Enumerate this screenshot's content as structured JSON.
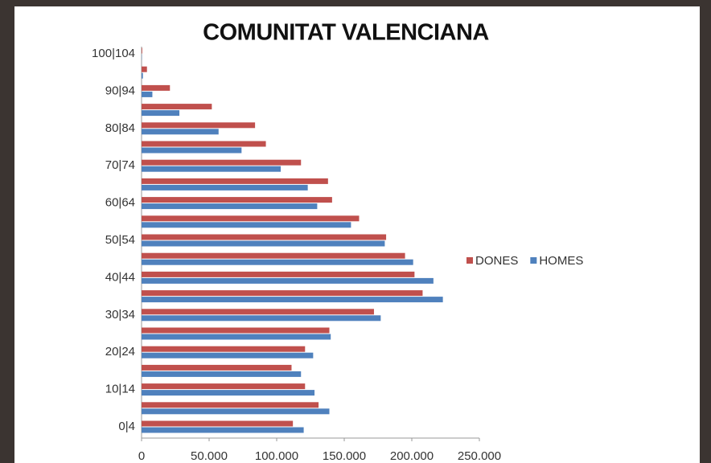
{
  "chart_data": {
    "type": "bar",
    "orientation": "horizontal",
    "title": "COMUNITAT VALENCIANA",
    "categories": [
      "0|4",
      null,
      "10|14",
      null,
      "20|24",
      null,
      "30|34",
      null,
      "40|44",
      null,
      "50|54",
      null,
      "60|64",
      null,
      "70|74",
      null,
      "80|84",
      null,
      "90|94",
      null,
      "100|104"
    ],
    "series": [
      {
        "name": "DONES",
        "color": "#c0504d",
        "values": [
          112000,
          131000,
          121000,
          111000,
          121000,
          139000,
          172000,
          208000,
          202000,
          195000,
          181000,
          161000,
          141000,
          138000,
          118000,
          92000,
          84000,
          52000,
          21000,
          4000,
          500
        ]
      },
      {
        "name": "HOMES",
        "color": "#4f81bd",
        "values": [
          120000,
          139000,
          128000,
          118000,
          127000,
          140000,
          177000,
          223000,
          216000,
          201000,
          180000,
          155000,
          130000,
          123000,
          103000,
          74000,
          57000,
          28000,
          8000,
          1000,
          200
        ]
      }
    ],
    "xlim": [
      0,
      250000
    ],
    "xticks": [
      0,
      {
        "value": 50000,
        "label": "50.000"
      },
      {
        "value": 100000,
        "label": "100.000"
      },
      {
        "value": 150000,
        "label": "150.000"
      },
      {
        "value": 200000,
        "label": "200.000"
      },
      {
        "value": 250000,
        "label": "250.000"
      }
    ],
    "grid": false,
    "legend": "right"
  }
}
